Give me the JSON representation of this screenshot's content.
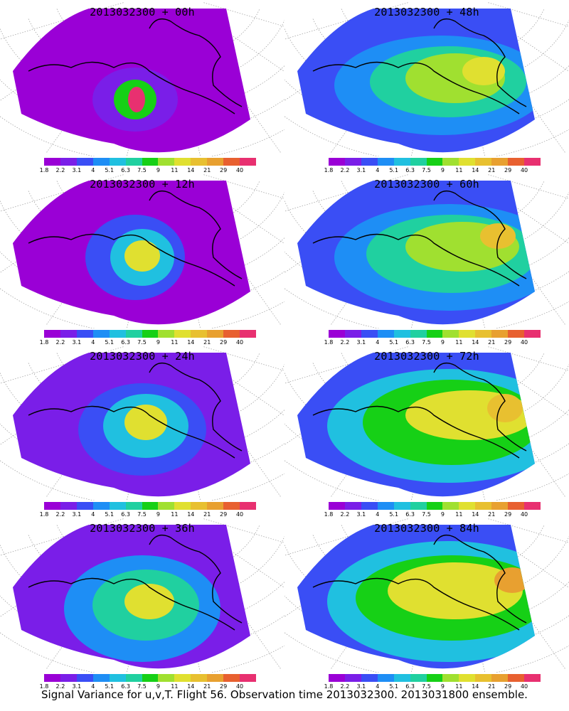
{
  "colorbar": {
    "colors": [
      "#9a00d6",
      "#7a1ee8",
      "#3a4ef5",
      "#1e8ef5",
      "#20c0e0",
      "#20d0a0",
      "#16d016",
      "#a0e030",
      "#e0e030",
      "#e8c030",
      "#e8a030",
      "#e86030",
      "#e83070"
    ],
    "labels": [
      "1.8",
      "2.2",
      "3.1",
      "4",
      "5.1",
      "6.3",
      "7.5",
      "9",
      "11",
      "14",
      "21",
      "29",
      "40"
    ]
  },
  "panels": [
    {
      "title": "2013032300 + 00h",
      "level": 0
    },
    {
      "title": "2013032300 + 48h",
      "level": 4
    },
    {
      "title": "2013032300 + 12h",
      "level": 1
    },
    {
      "title": "2013032300 + 60h",
      "level": 5
    },
    {
      "title": "2013032300 + 24h",
      "level": 2
    },
    {
      "title": "2013032300 + 72h",
      "level": 6
    },
    {
      "title": "2013032300 + 36h",
      "level": 3
    },
    {
      "title": "2013032300 + 84h",
      "level": 7
    }
  ],
  "footer": "Signal Variance for u,v,T. Flight 56. Observation time 2013032300. 2013031800 ensemble."
}
